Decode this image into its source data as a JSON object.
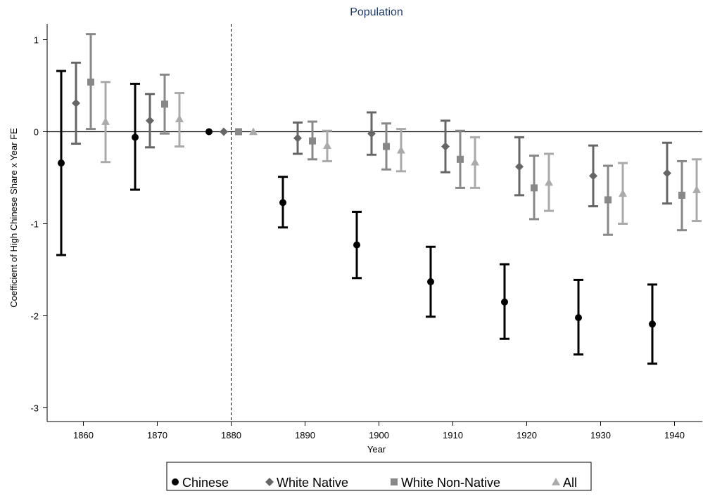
{
  "chart_data": {
    "type": "scatter",
    "title": "Population",
    "xlabel": "Year",
    "ylabel": "Coefficient of High Chinese Share x Year FE",
    "xlim": [
      1853,
      1944
    ],
    "ylim": [
      -3.1,
      1.2
    ],
    "xticks": [
      1860,
      1870,
      1880,
      1890,
      1900,
      1910,
      1920,
      1930,
      1940
    ],
    "yticks": [
      1,
      0,
      -1,
      -2,
      -3
    ],
    "reference_line_y": 0,
    "reference_line_x": 1880,
    "grid": false,
    "legend_position": "bottom",
    "series": [
      {
        "name": "Chinese",
        "marker": "circle",
        "color": "#000000",
        "points": [
          {
            "x": 1857,
            "y": -0.34,
            "lo": -1.34,
            "hi": 0.66
          },
          {
            "x": 1867,
            "y": -0.06,
            "lo": -0.63,
            "hi": 0.52
          },
          {
            "x": 1877,
            "y": 0.0,
            "lo": 0.0,
            "hi": 0.0
          },
          {
            "x": 1887,
            "y": -0.77,
            "lo": -1.04,
            "hi": -0.49
          },
          {
            "x": 1897,
            "y": -1.23,
            "lo": -1.59,
            "hi": -0.87
          },
          {
            "x": 1907,
            "y": -1.63,
            "lo": -2.01,
            "hi": -1.25
          },
          {
            "x": 1917,
            "y": -1.85,
            "lo": -2.25,
            "hi": -1.44
          },
          {
            "x": 1927,
            "y": -2.02,
            "lo": -2.42,
            "hi": -1.61
          },
          {
            "x": 1937,
            "y": -2.09,
            "lo": -2.52,
            "hi": -1.66
          }
        ]
      },
      {
        "name": "White Native",
        "marker": "diamond",
        "color": "#666666",
        "points": [
          {
            "x": 1859,
            "y": 0.31,
            "lo": -0.13,
            "hi": 0.75
          },
          {
            "x": 1869,
            "y": 0.12,
            "lo": -0.17,
            "hi": 0.41
          },
          {
            "x": 1879,
            "y": 0.0,
            "lo": 0.0,
            "hi": 0.0
          },
          {
            "x": 1889,
            "y": -0.07,
            "lo": -0.24,
            "hi": 0.1
          },
          {
            "x": 1899,
            "y": -0.02,
            "lo": -0.25,
            "hi": 0.21
          },
          {
            "x": 1909,
            "y": -0.16,
            "lo": -0.44,
            "hi": 0.12
          },
          {
            "x": 1919,
            "y": -0.38,
            "lo": -0.69,
            "hi": -0.06
          },
          {
            "x": 1929,
            "y": -0.48,
            "lo": -0.81,
            "hi": -0.15
          },
          {
            "x": 1939,
            "y": -0.45,
            "lo": -0.78,
            "hi": -0.12
          }
        ]
      },
      {
        "name": "White Non-Native",
        "marker": "square",
        "color": "#888888",
        "points": [
          {
            "x": 1861,
            "y": 0.54,
            "lo": 0.03,
            "hi": 1.06
          },
          {
            "x": 1871,
            "y": 0.3,
            "lo": -0.02,
            "hi": 0.62
          },
          {
            "x": 1881,
            "y": 0.0,
            "lo": 0.0,
            "hi": 0.0
          },
          {
            "x": 1891,
            "y": -0.1,
            "lo": -0.3,
            "hi": 0.11
          },
          {
            "x": 1901,
            "y": -0.16,
            "lo": -0.41,
            "hi": 0.09
          },
          {
            "x": 1911,
            "y": -0.3,
            "lo": -0.61,
            "hi": 0.01
          },
          {
            "x": 1921,
            "y": -0.61,
            "lo": -0.95,
            "hi": -0.26
          },
          {
            "x": 1931,
            "y": -0.74,
            "lo": -1.12,
            "hi": -0.37
          },
          {
            "x": 1941,
            "y": -0.69,
            "lo": -1.07,
            "hi": -0.32
          }
        ]
      },
      {
        "name": "All",
        "marker": "triangle",
        "color": "#aaaaaa",
        "points": [
          {
            "x": 1863,
            "y": 0.11,
            "lo": -0.33,
            "hi": 0.54
          },
          {
            "x": 1873,
            "y": 0.14,
            "lo": -0.16,
            "hi": 0.42
          },
          {
            "x": 1883,
            "y": 0.0,
            "lo": 0.0,
            "hi": 0.0
          },
          {
            "x": 1893,
            "y": -0.15,
            "lo": -0.32,
            "hi": 0.01
          },
          {
            "x": 1903,
            "y": -0.2,
            "lo": -0.43,
            "hi": 0.03
          },
          {
            "x": 1913,
            "y": -0.33,
            "lo": -0.61,
            "hi": -0.06
          },
          {
            "x": 1923,
            "y": -0.55,
            "lo": -0.86,
            "hi": -0.24
          },
          {
            "x": 1933,
            "y": -0.67,
            "lo": -1.0,
            "hi": -0.34
          },
          {
            "x": 1943,
            "y": -0.63,
            "lo": -0.97,
            "hi": -0.3
          }
        ]
      }
    ]
  }
}
